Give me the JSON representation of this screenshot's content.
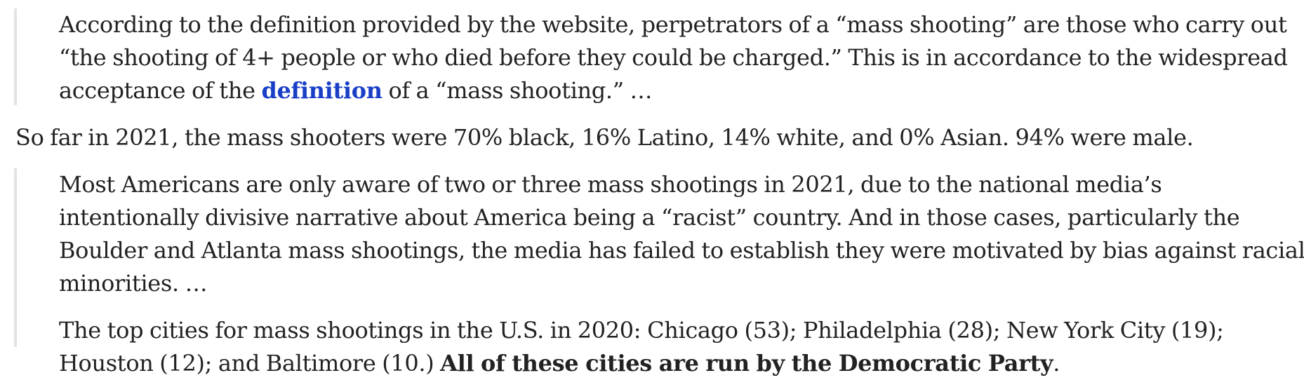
{
  "blockquote_1": {
    "text_before_link": "According to the definition provided by the website, perpetrators of a “mass shooting” are those who carry out “the shooting of 4+ people or who died before they could be charged.” This is in accordance to the widespread acceptance of the ",
    "link_text": "definition",
    "text_after_link": " of a “mass shooting.” …"
  },
  "standalone_paragraph": "So far in 2021, the mass shooters were 70% black, 16% Latino, 14% white, and 0% Asian. 94% were male.",
  "blockquote_2": {
    "paragraph_1": "Most Americans are only aware of two or three mass shootings in 2021, due to the national media’s intentionally divisive narrative about America being a “racist” country. And in those cases, particularly the Boulder and Atlanta mass shootings, the media has failed to establish they were motivated by bias against racial minorities. …",
    "paragraph_2_text": "The top cities for mass shootings in the U.S. in 2020: Chicago (53); Philadelphia (28); New York City (19); Houston (12); and Baltimore (10.) ",
    "paragraph_2_bold": "All of these cities are run by the Democratic Party",
    "paragraph_2_end": "."
  },
  "colors": {
    "text": "#222222",
    "link": "#1a3fc7",
    "quote_border": "#e3e3e3",
    "background": "#ffffff"
  }
}
